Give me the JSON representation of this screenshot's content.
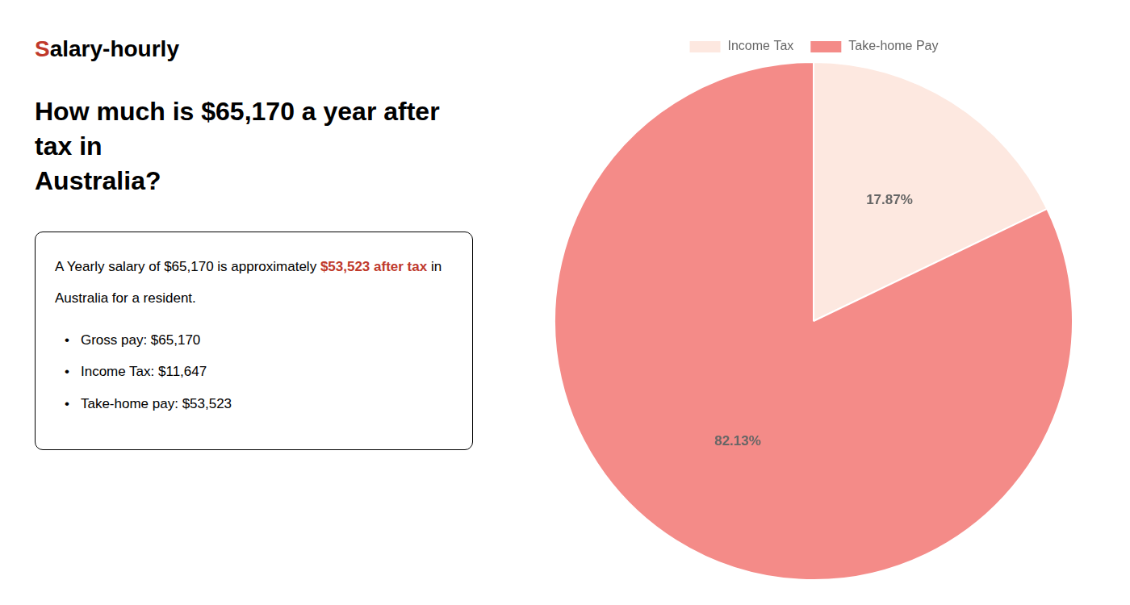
{
  "chart_data": {
    "type": "pie",
    "title": "How much is $65,170 a year after tax in\nAustralia?",
    "categories": [
      "Income Tax",
      "Take-home Pay"
    ],
    "values": [
      17.87,
      82.13
    ],
    "value_labels": [
      "17.87%",
      "82.13%"
    ],
    "colors": [
      "#fde8e0",
      "#f48b88"
    ],
    "data_labels": true,
    "legend": "top",
    "annotations": [
      [
        {
          "text": "S",
          "color": "#c0392b"
        },
        {
          "text": "alary-hourly"
        }
      ],
      [
        {
          "text": "A Yearly salary of $65,170 is approximately "
        },
        {
          "text": "$53,523 after tax",
          "color": "#c0392b"
        },
        {
          "text": " in"
        }
      ],
      [
        {
          "text": "Australia for a resident."
        }
      ],
      [
        {
          "text": "•"
        },
        {
          "text": "Gross pay: $65,170"
        }
      ],
      [
        {
          "text": "•"
        },
        {
          "text": "Income Tax: $11,647"
        }
      ],
      [
        {
          "text": "•"
        },
        {
          "text": "Take-home pay: $53,523"
        }
      ]
    ]
  }
}
